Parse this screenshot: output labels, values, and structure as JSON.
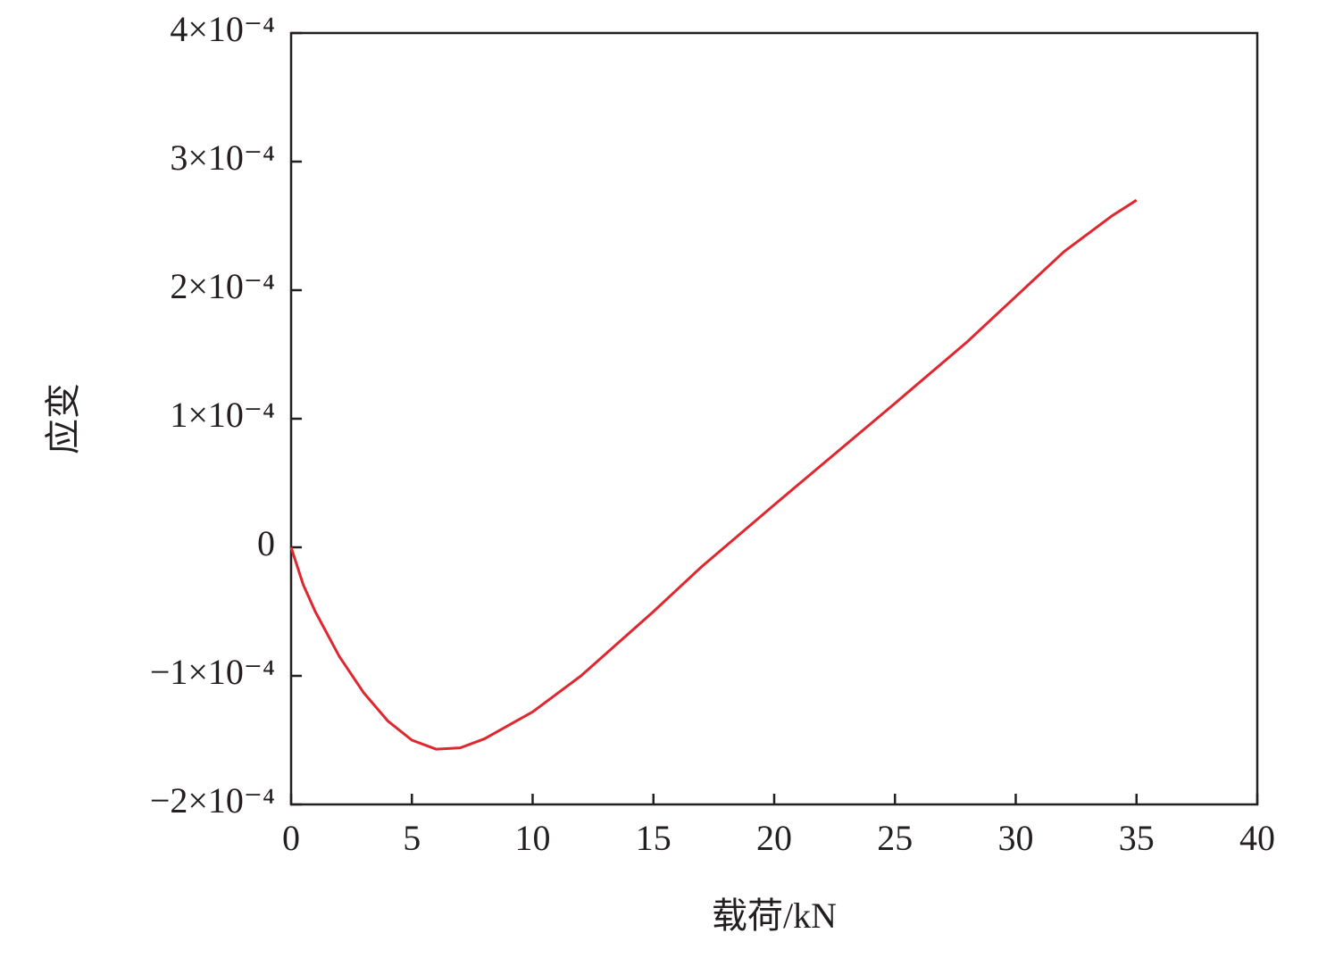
{
  "chart_data": {
    "type": "line",
    "x_label": "载荷/kN",
    "y_label": "应变",
    "x": [
      0,
      0.5,
      1,
      2,
      3,
      4,
      5,
      6,
      7,
      8,
      10,
      12,
      15,
      17,
      20,
      25,
      28,
      30,
      32,
      34,
      35
    ],
    "series": [
      {
        "name": "应变",
        "color": "#e0262f",
        "values": [
          0,
          -2.9e-05,
          -5e-05,
          -8.5e-05,
          -0.000113,
          -0.000135,
          -0.00015,
          -0.000157,
          -0.000156,
          -0.000149,
          -0.000128,
          -0.0001,
          -5e-05,
          -1.5e-05,
          3.3e-05,
          0.000112,
          0.00016,
          0.000195,
          0.00023,
          0.000258,
          0.00027
        ]
      }
    ],
    "xlim": [
      0,
      40
    ],
    "xticks": [
      0,
      5,
      10,
      15,
      20,
      25,
      30,
      35,
      40
    ],
    "ylim": [
      -0.0002,
      0.0004
    ],
    "yticks": [
      {
        "value": -0.0002,
        "label": "−2×10⁻⁴"
      },
      {
        "value": -0.0001,
        "label": "−1×10⁻⁴"
      },
      0,
      {
        "value": 0.0001,
        "label": "1×10⁻⁴"
      },
      {
        "value": 0.0002,
        "label": "2×10⁻⁴"
      },
      {
        "value": 0.0003,
        "label": "3×10⁻⁴"
      },
      {
        "value": 0.0004,
        "label": "4×10⁻⁴"
      }
    ],
    "grid": false
  }
}
